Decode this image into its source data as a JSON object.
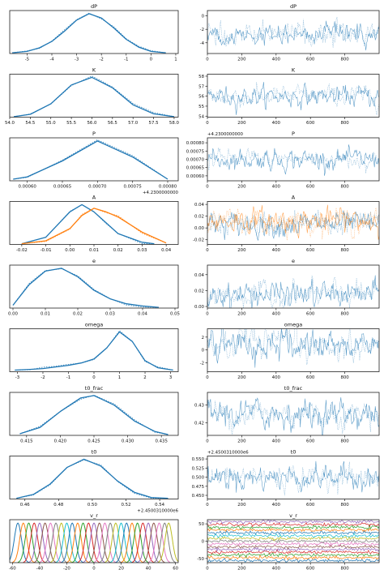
{
  "chart_data": [
    {
      "type": "line",
      "panel": "density",
      "title": "dP",
      "xlim": [
        -5.7,
        1.1
      ],
      "xticks": [
        "-5",
        "-4",
        "-3",
        "-2",
        "-1",
        "0",
        "1"
      ],
      "xtick_values": [
        -5,
        -4,
        -3,
        -2,
        -1,
        0,
        1
      ],
      "series": [
        {
          "color": "#1f77b4",
          "x": [
            -5.6,
            -5,
            -4.5,
            -4,
            -3.5,
            -3,
            -2.5,
            -2,
            -1.5,
            -1,
            -0.5,
            0,
            0.6
          ],
          "y": [
            0.01,
            0.03,
            0.08,
            0.17,
            0.31,
            0.47,
            0.56,
            0.5,
            0.36,
            0.2,
            0.09,
            0.03,
            0.01
          ]
        }
      ]
    },
    {
      "type": "line",
      "panel": "trace",
      "title": "dP",
      "xlim": [
        0,
        1000
      ],
      "ylim": [
        -5.6,
        0.8
      ],
      "xticks": [
        "0",
        "200",
        "400",
        "600",
        "800"
      ],
      "xtick_values": [
        0,
        200,
        400,
        600,
        800
      ],
      "yticks": [
        "-4",
        "-2",
        "0"
      ],
      "ytick_values": [
        -4,
        -2,
        0
      ],
      "series": [
        {
          "color": "#1f77b4",
          "mean": -2.7,
          "sd": 0.8
        }
      ]
    },
    {
      "type": "line",
      "panel": "density",
      "title": "K",
      "xlim": [
        54.0,
        58.1
      ],
      "xticks": [
        "54.0",
        "54.5",
        "55.0",
        "55.5",
        "56.0",
        "56.5",
        "57.0",
        "57.5",
        "58.0"
      ],
      "xtick_values": [
        54.0,
        54.5,
        55.0,
        55.5,
        56.0,
        56.5,
        57.0,
        57.5,
        58.0
      ],
      "series": [
        {
          "color": "#1f77b4",
          "x": [
            54.1,
            54.5,
            55.0,
            55.5,
            56.0,
            56.5,
            57.0,
            57.5,
            58.0
          ],
          "y": [
            0.01,
            0.06,
            0.28,
            0.68,
            0.84,
            0.62,
            0.26,
            0.07,
            0.01
          ]
        }
      ]
    },
    {
      "type": "line",
      "panel": "trace",
      "title": "K",
      "xlim": [
        0,
        1000
      ],
      "ylim": [
        53.9,
        58.2
      ],
      "xticks": [
        "0",
        "200",
        "400",
        "600",
        "800"
      ],
      "xtick_values": [
        0,
        200,
        400,
        600,
        800
      ],
      "yticks": [
        "54",
        "55",
        "56",
        "57",
        "58"
      ],
      "ytick_values": [
        54,
        55,
        56,
        57,
        58
      ],
      "series": [
        {
          "color": "#1f77b4",
          "mean": 56.0,
          "sd": 0.5
        }
      ]
    },
    {
      "type": "line",
      "panel": "density",
      "title": "P",
      "xlim": [
        0.000575,
        0.000815
      ],
      "xticks": [
        "0.00060",
        "0.00065",
        "0.00070",
        "0.00075",
        "0.00080"
      ],
      "xtick_values": [
        0.0006,
        0.00065,
        0.0007,
        0.00075,
        0.0008
      ],
      "offset": "+4.2300000000",
      "series": [
        {
          "color": "#1f77b4",
          "x": [
            0.00058,
            0.0006,
            0.00065,
            0.0007,
            0.00075,
            0.0008
          ],
          "y": [
            0.02,
            0.05,
            0.25,
            0.5,
            0.3,
            0.02
          ]
        }
      ]
    },
    {
      "type": "line",
      "panel": "trace",
      "title": "P",
      "xlim": [
        0,
        1000
      ],
      "ylim": [
        0.00057,
        0.00083
      ],
      "xticks": [
        "0",
        "200",
        "400",
        "600",
        "800"
      ],
      "xtick_values": [
        0,
        200,
        400,
        600,
        800
      ],
      "yticks": [
        "0.00060",
        "0.00065",
        "0.00070",
        "0.00075",
        "0.00080"
      ],
      "ytick_values": [
        0.0006,
        0.00065,
        0.0007,
        0.00075,
        0.0008
      ],
      "offset": "+4.2300000000",
      "series": [
        {
          "color": "#1f77b4",
          "mean": 0.0007,
          "sd": 3e-05
        }
      ]
    },
    {
      "type": "line",
      "panel": "density",
      "title": "A",
      "xlim": [
        -0.025,
        0.045
      ],
      "xticks": [
        "-0.02",
        "-0.01",
        "0.00",
        "0.01",
        "0.02",
        "0.03",
        "0.04"
      ],
      "xtick_values": [
        -0.02,
        -0.01,
        0,
        0.01,
        0.02,
        0.03,
        0.04
      ],
      "series": [
        {
          "color": "#1f77b4",
          "x": [
            -0.02,
            -0.01,
            0,
            0.005,
            0.01,
            0.015,
            0.02,
            0.03,
            0.035
          ],
          "y": [
            0.01,
            0.1,
            0.45,
            0.55,
            0.45,
            0.3,
            0.15,
            0.03,
            0.01
          ]
        },
        {
          "color": "#ff7f0e",
          "x": [
            -0.02,
            -0.01,
            0,
            0.005,
            0.01,
            0.015,
            0.02,
            0.03,
            0.04
          ],
          "y": [
            0.01,
            0.05,
            0.22,
            0.4,
            0.5,
            0.45,
            0.38,
            0.17,
            0.02
          ]
        }
      ]
    },
    {
      "type": "line",
      "panel": "trace",
      "title": "A",
      "xlim": [
        0,
        1000
      ],
      "ylim": [
        -0.028,
        0.045
      ],
      "xticks": [
        "0",
        "200",
        "400",
        "600",
        "800"
      ],
      "xtick_values": [
        0,
        200,
        400,
        600,
        800
      ],
      "yticks": [
        "-0.02",
        "0.00",
        "0.02",
        "0.04"
      ],
      "ytick_values": [
        -0.02,
        0,
        0.02,
        0.04
      ],
      "series": [
        {
          "color": "#1f77b4",
          "mean": 0.006,
          "sd": 0.01
        },
        {
          "color": "#ff7f0e",
          "mean": 0.012,
          "sd": 0.01
        }
      ]
    },
    {
      "type": "line",
      "panel": "density",
      "title": "e",
      "xlim": [
        -0.001,
        0.051
      ],
      "xticks": [
        "0.00",
        "0.01",
        "0.02",
        "0.03",
        "0.04",
        "0.05"
      ],
      "xtick_values": [
        0,
        0.01,
        0.02,
        0.03,
        0.04,
        0.05
      ],
      "series": [
        {
          "color": "#1f77b4",
          "x": [
            0,
            0.005,
            0.01,
            0.015,
            0.02,
            0.025,
            0.03,
            0.035,
            0.04,
            0.045
          ],
          "y": [
            0.04,
            0.33,
            0.52,
            0.56,
            0.44,
            0.25,
            0.13,
            0.06,
            0.03,
            0.01
          ]
        }
      ]
    },
    {
      "type": "line",
      "panel": "trace",
      "title": "e",
      "xlim": [
        0,
        1000
      ],
      "ylim": [
        -0.002,
        0.052
      ],
      "xticks": [
        "0",
        "200",
        "400",
        "600",
        "800"
      ],
      "xtick_values": [
        0,
        200,
        400,
        600,
        800
      ],
      "yticks": [
        "0.00",
        "0.02",
        "0.04"
      ],
      "ytick_values": [
        0,
        0.02,
        0.04
      ],
      "series": [
        {
          "color": "#1f77b4",
          "mean": 0.015,
          "sd": 0.008
        }
      ]
    },
    {
      "type": "line",
      "panel": "density",
      "title": "omega",
      "xlim": [
        -3.3,
        3.3
      ],
      "xticks": [
        "-3",
        "-2",
        "-1",
        "0",
        "1",
        "2",
        "3"
      ],
      "xtick_values": [
        -3,
        -2,
        -1,
        0,
        1,
        2,
        3
      ],
      "series": [
        {
          "color": "#1f77b4",
          "x": [
            -3.1,
            -2.5,
            -2,
            -1.5,
            -1,
            -0.5,
            0,
            0.5,
            1,
            1.5,
            2,
            2.5,
            3.1
          ],
          "y": [
            0.02,
            0.03,
            0.04,
            0.06,
            0.08,
            0.11,
            0.16,
            0.3,
            0.5,
            0.38,
            0.14,
            0.05,
            0.02
          ]
        }
      ]
    },
    {
      "type": "line",
      "panel": "trace",
      "title": "omega",
      "xlim": [
        0,
        1000
      ],
      "ylim": [
        -3.4,
        3.3
      ],
      "xticks": [
        "0",
        "200",
        "400",
        "600",
        "800"
      ],
      "xtick_values": [
        0,
        200,
        400,
        600,
        800
      ],
      "yticks": [
        "-2",
        "0",
        "2"
      ],
      "ytick_values": [
        -2,
        0,
        2
      ],
      "series": [
        {
          "color": "#1f77b4",
          "mean": 0.7,
          "sd": 1.2
        }
      ]
    },
    {
      "type": "line",
      "panel": "density",
      "title": "t0_frac",
      "xlim": [
        0.4125,
        0.4375
      ],
      "xticks": [
        "0.415",
        "0.420",
        "0.425",
        "0.430",
        "0.435"
      ],
      "xtick_values": [
        0.415,
        0.42,
        0.425,
        0.43,
        0.435
      ],
      "series": [
        {
          "color": "#1f77b4",
          "x": [
            0.414,
            0.417,
            0.42,
            0.423,
            0.425,
            0.428,
            0.431,
            0.434,
            0.436
          ],
          "y": [
            0.02,
            0.1,
            0.3,
            0.47,
            0.5,
            0.38,
            0.18,
            0.05,
            0.01
          ]
        }
      ]
    },
    {
      "type": "line",
      "panel": "trace",
      "title": "t0_frac",
      "xlim": [
        0,
        1000
      ],
      "ylim": [
        0.413,
        0.437
      ],
      "xticks": [
        "0",
        "200",
        "400",
        "600",
        "800"
      ],
      "xtick_values": [
        0,
        200,
        400,
        600,
        800
      ],
      "yticks": [
        "0.42",
        "0.43"
      ],
      "ytick_values": [
        0.42,
        0.43
      ],
      "series": [
        {
          "color": "#1f77b4",
          "mean": 0.425,
          "sd": 0.004
        }
      ]
    },
    {
      "type": "line",
      "panel": "density",
      "title": "t0",
      "xlim": [
        0.451,
        0.551
      ],
      "xticks": [
        "0.46",
        "0.48",
        "0.50",
        "0.52",
        "0.54"
      ],
      "xtick_values": [
        0.46,
        0.48,
        0.5,
        0.52,
        0.54
      ],
      "offset": "+2.4500310000e6",
      "series": [
        {
          "color": "#1f77b4",
          "x": [
            0.455,
            0.465,
            0.475,
            0.485,
            0.495,
            0.505,
            0.515,
            0.525,
            0.535,
            0.545
          ],
          "y": [
            0.01,
            0.06,
            0.2,
            0.42,
            0.53,
            0.44,
            0.24,
            0.09,
            0.02,
            0.01
          ]
        }
      ]
    },
    {
      "type": "line",
      "panel": "trace",
      "title": "t0",
      "xlim": [
        0,
        1000
      ],
      "ylim": [
        0.44,
        0.558
      ],
      "xticks": [
        "0",
        "200",
        "400",
        "600",
        "800"
      ],
      "xtick_values": [
        0,
        200,
        400,
        600,
        800
      ],
      "yticks": [
        "0.450",
        "0.475",
        "0.500",
        "0.525",
        "0.550"
      ],
      "ytick_values": [
        0.45,
        0.475,
        0.5,
        0.525,
        0.55
      ],
      "offset": "+2.4500310000e6",
      "series": [
        {
          "color": "#1f77b4",
          "mean": 0.5,
          "sd": 0.016
        }
      ]
    },
    {
      "type": "line",
      "panel": "density",
      "title": "v_r",
      "xlim": [
        -62,
        62
      ],
      "xticks": [
        "-60",
        "-40",
        "-20",
        "0",
        "20",
        "40",
        "60"
      ],
      "xtick_values": [
        -60,
        -40,
        -20,
        0,
        20,
        40,
        60
      ],
      "series": [
        {
          "color": "multi",
          "peaks": [
            -56,
            -52,
            -48,
            -44,
            -40,
            -36,
            -32,
            -28,
            -24,
            -20,
            -16,
            -12,
            -8,
            -4,
            0,
            4,
            8,
            12,
            16,
            20,
            24,
            28,
            32,
            36,
            40,
            44,
            48,
            52,
            55
          ]
        }
      ]
    },
    {
      "type": "line",
      "panel": "trace",
      "title": "v_r",
      "xlim": [
        0,
        1000
      ],
      "ylim": [
        -62,
        62
      ],
      "xticks": [
        "0",
        "200",
        "400",
        "600",
        "800"
      ],
      "xtick_values": [
        0,
        200,
        400,
        600,
        800
      ],
      "yticks": [
        "-50",
        "0",
        "50"
      ],
      "ytick_values": [
        -50,
        0,
        50
      ],
      "series": [
        {
          "color": "multi",
          "levels": [
            -56,
            -48,
            -40,
            -32,
            -24,
            -16,
            -8,
            0,
            8,
            16,
            24,
            32,
            40,
            48,
            56
          ]
        }
      ]
    }
  ]
}
